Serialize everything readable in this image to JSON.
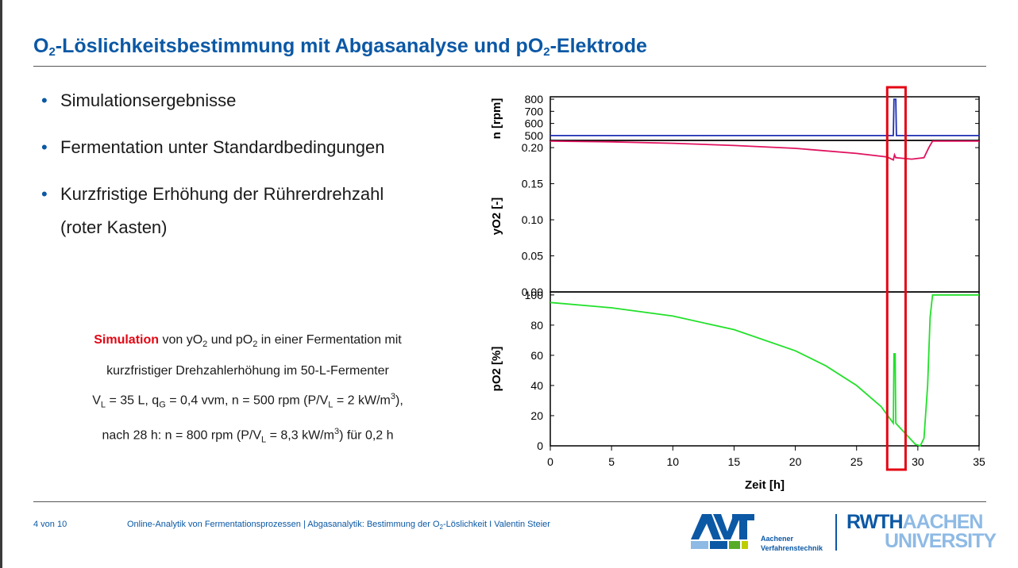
{
  "slide": {
    "title_part1": "O",
    "title_sub1": "2",
    "title_part2": "-Löslichkeitsbestimmung mit Abgasanalyse und pO",
    "title_sub2": "2",
    "title_part3": "-Elektrode"
  },
  "bullets": [
    {
      "line1": "Simulationsergebnisse",
      "line2": ""
    },
    {
      "line1": "Fermentation unter Standardbedingungen",
      "line2": ""
    },
    {
      "line1": "Kurzfristige Erhöhung der Rührerdrehzahl",
      "line2": "(roter Kasten)"
    }
  ],
  "bullet_char": "•",
  "caption": {
    "l1_red": "Simulation",
    "l1_a": " von yO",
    "l1_s1": "2",
    "l1_b": " und pO",
    "l1_s2": "2",
    "l1_c": " in einer Fermentation mit",
    "l2": "kurzfristiger Drehzahlerhöhung im 50-L-Fermenter",
    "l3_a": "V",
    "l3_s1": "L",
    "l3_b": " = 35 L,  q",
    "l3_s2": "G",
    "l3_c": " = 0,4 vvm,  n = 500 rpm (P/V",
    "l3_s3": "L",
    "l3_d": " = 2 kW/m",
    "l3_sup": "3",
    "l3_e": "),",
    "l4_a": "nach 28 h: n = 800 rpm (P/V",
    "l4_s1": "L",
    "l4_b": " = 8,3 kW/m",
    "l4_sup": "3",
    "l4_c": ") für 0,2 h"
  },
  "footer": {
    "page": "4 von 10",
    "text_a": "Online-Analytik von Fermentationsprozessen | Abgasanalytik: Bestimmung der O",
    "text_sub": "2",
    "text_b": "-Löslichkeit I Valentin Steier",
    "avt_line1": "Aachener",
    "avt_line2": "Verfahrenstechnik",
    "rwth_a": "RWTH",
    "rwth_b": "AACHEN",
    "rwth_c": "UNIVERSITY"
  },
  "colors": {
    "accent": "#0b58a5",
    "highlight_red": "#e30613",
    "series_n": "#1f2fb4",
    "series_yo2": "#e0125f",
    "series_po2": "#22e02a"
  },
  "chart_data": {
    "type": "line",
    "xlabel": "Zeit [h]",
    "xlim": [
      0,
      35
    ],
    "xticks": [
      0,
      5,
      10,
      15,
      20,
      25,
      30,
      35
    ],
    "highlight_interval_h": [
      27.5,
      29.0
    ],
    "panels": [
      {
        "ylabel": "n [rpm]",
        "ylim": [
          460,
          820
        ],
        "yticks": [
          500,
          600,
          700,
          800
        ],
        "series": [
          {
            "name": "",
            "x": [
              0,
              28.0,
              28.05,
              28.2,
              28.25,
              35
            ],
            "values": [
              500,
              500,
              800,
              800,
              500,
              500
            ]
          }
        ]
      },
      {
        "ylabel": "yO2 [-]",
        "ylim": [
          0,
          0.21
        ],
        "yticks": [
          0.0,
          0.05,
          0.1,
          0.15,
          0.2
        ],
        "series": [
          {
            "name": "",
            "x": [
              0,
              5,
              10,
              15,
              20,
              25,
              27.5,
              28.0,
              28.1,
              28.2,
              29.5,
              30.5,
              30.9,
              31.2,
              35
            ],
            "values": [
              0.209,
              0.208,
              0.206,
              0.203,
              0.199,
              0.192,
              0.187,
              0.183,
              0.19,
              0.186,
              0.184,
              0.186,
              0.2,
              0.209,
              0.209
            ]
          }
        ]
      },
      {
        "ylabel": "pO2 [%]",
        "ylim": [
          0,
          102
        ],
        "yticks": [
          0,
          20,
          40,
          60,
          80,
          100
        ],
        "series": [
          {
            "name": "",
            "x": [
              0,
              5,
              10,
              15,
              20,
              22.5,
              25,
              27.0,
              28.0,
              28.05,
              28.15,
              28.2,
              29.0,
              29.8,
              30.2,
              30.5,
              30.8,
              31.0,
              31.2,
              35
            ],
            "values": [
              95,
              91.5,
              86,
              77,
              63,
              53,
              40,
              26,
              15,
              61,
              61,
              15,
              8,
              1,
              0,
              5,
              40,
              85,
              100,
              100
            ]
          }
        ]
      }
    ]
  }
}
